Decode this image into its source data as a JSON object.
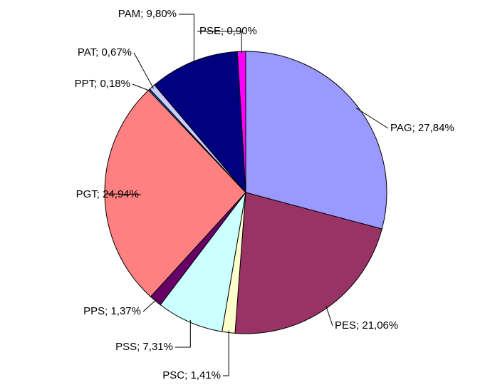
{
  "chart_data": {
    "type": "pie",
    "values": [
      27.84,
      21.06,
      1.41,
      7.31,
      1.37,
      24.94,
      0.18,
      0.67,
      9.8,
      0.9
    ],
    "value_labels": [
      "PAG; 27,84%",
      "PES; 21,06%",
      "PSC; 1,41%",
      "PSS; 7,31%",
      "PPS; 1,37%",
      "PGT; 24,94%",
      "PPT; 0,18%",
      "PAT; 0,67%",
      "PAM; 9,80%",
      "PSE; 0,90%"
    ],
    "colors": [
      "#9999ff",
      "#993366",
      "#ffffcc",
      "#ccffff",
      "#660066",
      "#ff8080",
      "#0066cc",
      "#ccccff",
      "#000080",
      "#ff00ff"
    ]
  }
}
